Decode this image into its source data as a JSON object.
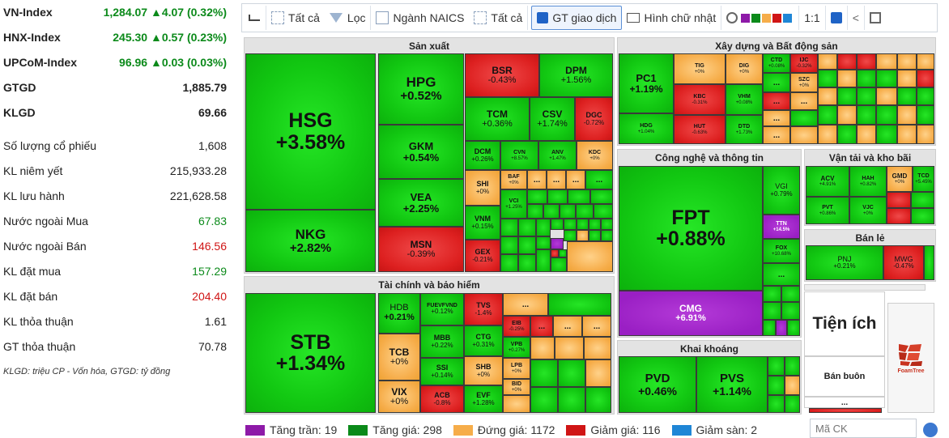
{
  "indices": [
    {
      "name": "VN-Index",
      "value": "1,284.07 ▲4.07 (0.32%)"
    },
    {
      "name": "HNX-Index",
      "value": "245.30 ▲0.57 (0.23%)"
    },
    {
      "name": "UPCoM-Index",
      "value": "96.96 ▲0.03 (0.03%)"
    }
  ],
  "totals": [
    {
      "name": "GTGD",
      "value": "1,885.79"
    },
    {
      "name": "KLGD",
      "value": "69.66"
    }
  ],
  "stats": [
    {
      "name": "Số lượng cổ phiếu",
      "value": "1,608",
      "tone": "normal"
    },
    {
      "name": "KL niêm yết",
      "value": "215,933.28",
      "tone": "normal"
    },
    {
      "name": "KL lưu hành",
      "value": "221,628.58",
      "tone": "normal"
    },
    {
      "name": "Nước ngoài Mua",
      "value": "67.83",
      "tone": "green"
    },
    {
      "name": "Nước ngoài Bán",
      "value": "146.56",
      "tone": "red"
    },
    {
      "name": "KL đặt mua",
      "value": "157.29",
      "tone": "green"
    },
    {
      "name": "KL đặt bán",
      "value": "204.40",
      "tone": "red"
    },
    {
      "name": "KL thỏa thuận",
      "value": "1.61",
      "tone": "normal"
    },
    {
      "name": "GT thỏa thuận",
      "value": "70.78",
      "tone": "normal"
    }
  ],
  "note": "KLGD: triệu CP - Vốn hóa, GTGD: tỷ đồng",
  "toolbar": {
    "all1": "Tất cả",
    "filter": "Lọc",
    "industry": "Ngành NAICS",
    "all2": "Tất cả",
    "gtgd": "GT giao dịch",
    "rect": "Hình chữ nhật",
    "ratio": "1:1"
  },
  "sections": {
    "sanxuat": "Sản xuất",
    "taichinh": "Tài chính và bảo hiểm",
    "xaydung": "Xây dựng và Bất động sản",
    "congnghe": "Công nghệ và thông tin",
    "vantai": "Vận tải và kho bãi",
    "banle": "Bán lẻ",
    "khaikhoang": "Khai khoáng",
    "tienich": "Tiện ích",
    "banbuon": "Bán buôn",
    "foamtree": "FoamTree"
  },
  "tiles": {
    "HSG": "+3.58%",
    "NKG": "+2.82%",
    "HPG": "+0.52%",
    "GKM": "+0.54%",
    "VEA": "+2.25%",
    "MSN": "-0.39%",
    "BSR": "-0.43%",
    "DPM": "+1.56%",
    "TCM": "+0.36%",
    "CSV": "+1.74%",
    "DGC": "-0.72%",
    "DCM": "+0.26%",
    "CVN": "+8.57%",
    "ANV": "+1.47%",
    "KDC": "+0%",
    "BAF": "+0%",
    "SHI": "+0%",
    "VCI": "+1.25%",
    "VNM": "+0.15%",
    "GEX": "-0.21%",
    "STB": "+1.34%",
    "HDB": "+0.21%",
    "FUEVFVND": "+0.12%",
    "TVS": "-1.4%",
    "TCB": "+0%",
    "MBB": "+0.22%",
    "CTG": "+0.31%",
    "SSI": "+0.14%",
    "VIX": "+0%",
    "ACB": "-0.8%",
    "EVF": "+1.28%",
    "EIB": "-0.25%",
    "VPB": "+0.27%",
    "SHB": "+0%",
    "LPB": "+0%",
    "BID": "+0%",
    "PC1": "+1.19%",
    "TIG": "+0%",
    "DIG": "+0%",
    "CTD": "+0.08%",
    "IJC": "-0.32%",
    "KBC": "-0.31%",
    "VHM": "+0.08%",
    "SZC": "+0%",
    "HDG": "+1.04%",
    "HUT": "-0.63%",
    "DTD": "+1.73%",
    "FPT": "+0.88%",
    "VGI": "+0.79%",
    "TTN": "+14.5%",
    "FOX": "+10.68%",
    "CMG": "+6.91%",
    "ACV": "+4.91%",
    "HAH": "+0.82%",
    "GMD": "+0%",
    "TCD": "+5.45%",
    "PVT": "+0.86%",
    "VJC": "+0%",
    "PNJ": "+0.21%",
    "MWG": "-0.47%",
    "PVD": "+0.46%",
    "PVS": "+1.14%"
  },
  "legend": [
    {
      "label": "Tăng trần: 19",
      "color": "#8e1aa8"
    },
    {
      "label": "Tăng giá: 298",
      "color": "#0b8a1a"
    },
    {
      "label": "Đứng giá: 1172",
      "color": "#f6ad4a"
    },
    {
      "label": "Giảm giá: 116",
      "color": "#d01515"
    },
    {
      "label": "Giảm sàn: 2",
      "color": "#1f86d6"
    }
  ],
  "search": {
    "placeholder": "Mã CK"
  },
  "dots": "..."
}
